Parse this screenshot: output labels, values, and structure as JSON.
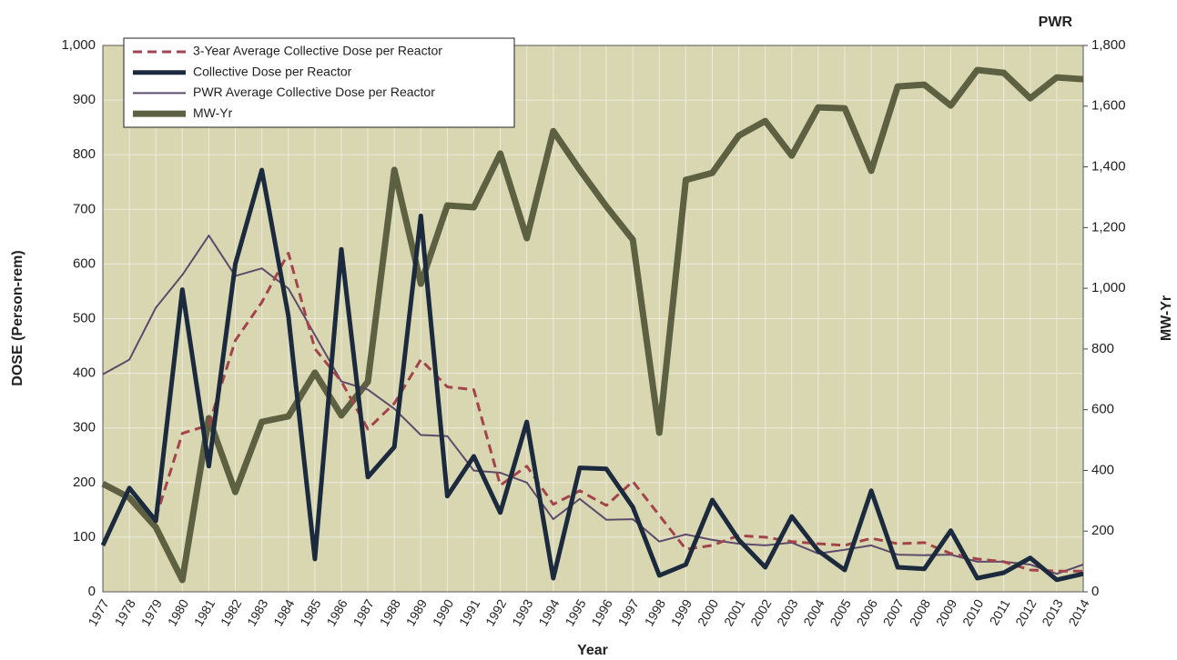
{
  "chart_data": {
    "type": "line",
    "title": "PWR",
    "x_label": "Year",
    "y_label": "DOSE (Person-rem)",
    "y2_label": "MW-Yr",
    "categories": [
      "1977",
      "1978",
      "1979",
      "1980",
      "1981",
      "1982",
      "1983",
      "1984",
      "1985",
      "1986",
      "1987",
      "1988",
      "1989",
      "1990",
      "1991",
      "1992",
      "1993",
      "1994",
      "1995",
      "1996",
      "1997",
      "1998",
      "1999",
      "2000",
      "2001",
      "2002",
      "2003",
      "2004",
      "2005",
      "2006",
      "2007",
      "2008",
      "2009",
      "2010",
      "2011",
      "2012",
      "2013",
      "2014"
    ],
    "series": [
      {
        "name": "3-Year Average Collective Dose per Reactor",
        "color": "#a3444c",
        "style": "dashed",
        "values": [
          null,
          null,
          135,
          290,
          305,
          460,
          530,
          620,
          445,
          385,
          298,
          345,
          425,
          375,
          370,
          195,
          230,
          160,
          185,
          158,
          202,
          140,
          78,
          85,
          103,
          100,
          92,
          88,
          85,
          98,
          88,
          90,
          70,
          60,
          55,
          40,
          38,
          38
        ]
      },
      {
        "name": "Collective Dose per Reactor",
        "color": "#1c2a3e",
        "style": "solid",
        "values": [
          85,
          190,
          130,
          553,
          230,
          600,
          772,
          505,
          60,
          627,
          210,
          265,
          688,
          175,
          248,
          145,
          311,
          25,
          227,
          225,
          155,
          30,
          50,
          168,
          95,
          45,
          138,
          75,
          40,
          185,
          45,
          42,
          112,
          25,
          35,
          62,
          22,
          33
        ]
      },
      {
        "name": "PWR Average Collective Dose per Reactor",
        "color": "#5e4b6b",
        "style": "solid",
        "values": [
          398,
          425,
          520,
          580,
          652,
          578,
          592,
          555,
          470,
          385,
          370,
          335,
          287,
          285,
          222,
          218,
          200,
          133,
          170,
          132,
          133,
          92,
          105,
          95,
          88,
          85,
          90,
          70,
          77,
          85,
          68,
          67,
          68,
          55,
          55,
          50,
          33,
          50
        ]
      },
      {
        "name": "MW-Yr",
        "color": "#5e6042",
        "style": "solid",
        "axis": "y2",
        "values": [
          356,
          310,
          213,
          39,
          572,
          329,
          560,
          578,
          722,
          581,
          692,
          1390,
          1015,
          1273,
          1267,
          1444,
          1165,
          1518,
          1390,
          1270,
          1160,
          524,
          1357,
          1380,
          1503,
          1551,
          1437,
          1596,
          1593,
          1387,
          1665,
          1671,
          1602,
          1719,
          1710,
          1626,
          1695,
          1689
        ]
      }
    ],
    "ylim": [
      0,
      1000
    ],
    "yticks": [
      0,
      100,
      200,
      300,
      400,
      500,
      600,
      700,
      800,
      900,
      {
        "value": 1000,
        "label": "1,000"
      }
    ],
    "y2lim": [
      0,
      1800
    ],
    "y2ticks": [
      0,
      200,
      400,
      600,
      800,
      {
        "value": 1000,
        "label": "1,000"
      },
      {
        "value": 1200,
        "label": "1,200"
      },
      {
        "value": 1400,
        "label": "1,400"
      },
      {
        "value": 1600,
        "label": "1,600"
      },
      {
        "value": 1800,
        "label": "1,800"
      }
    ],
    "grid": true,
    "legend": "upper left",
    "background": "#d8d7b2"
  }
}
